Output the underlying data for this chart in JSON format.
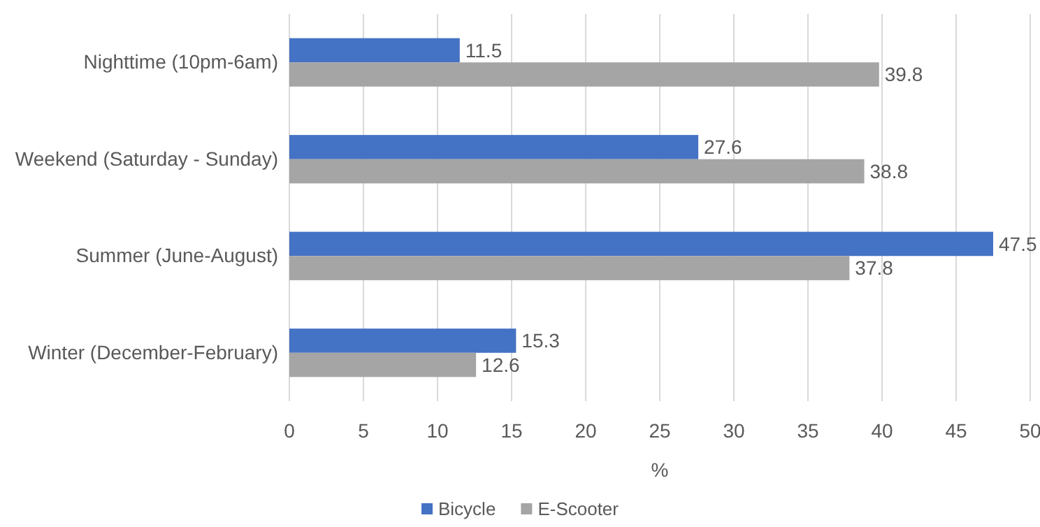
{
  "chart_data": {
    "type": "bar",
    "orientation": "horizontal",
    "categories": [
      "Nighttime (10pm-6am)",
      "Weekend (Saturday - Sunday)",
      "Summer (June-August)",
      "Winter (December-February)"
    ],
    "series": [
      {
        "name": "Bicycle",
        "color": "#4472c4",
        "values": [
          11.5,
          27.6,
          47.5,
          15.3
        ]
      },
      {
        "name": "E-Scooter",
        "color": "#a5a5a5",
        "values": [
          39.8,
          38.8,
          37.8,
          12.6
        ]
      }
    ],
    "xlabel": "%",
    "xlim": [
      0,
      50
    ],
    "xticks": [
      0,
      5,
      10,
      15,
      20,
      25,
      30,
      35,
      40,
      45,
      50
    ],
    "grid": "x",
    "legend": "bottom",
    "data_labels": true
  }
}
